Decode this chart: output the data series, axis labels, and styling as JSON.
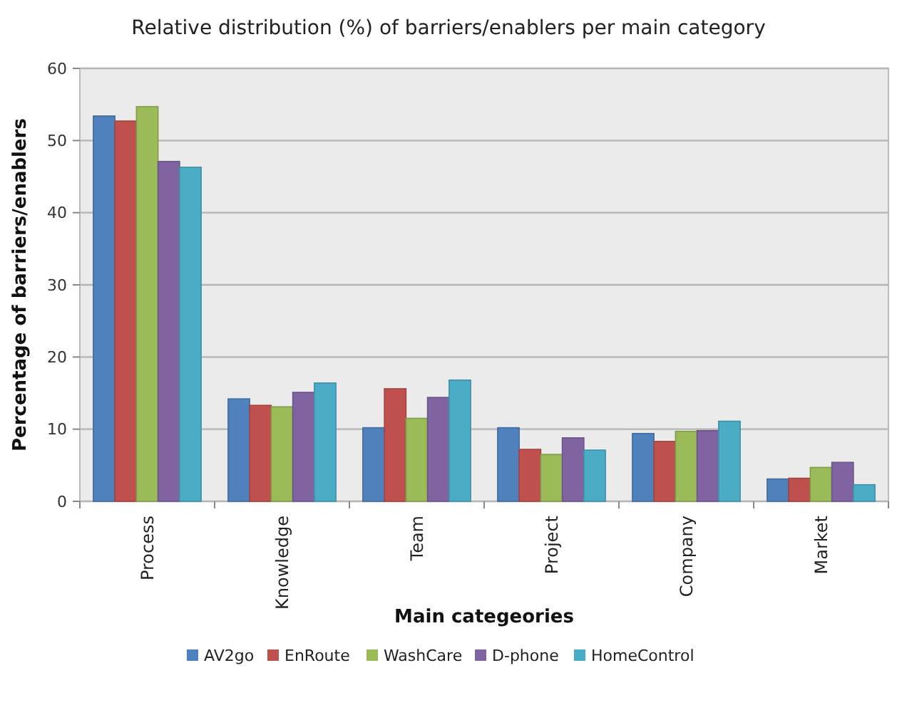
{
  "chart_data": {
    "type": "bar",
    "title": "Relative distribution (%) of barriers/enablers per main category",
    "xlabel": "Main categeories",
    "ylabel": "Percentage of barriers/enablers",
    "categories": [
      "Process",
      "Knowledge",
      "Team",
      "Project",
      "Company",
      "Market"
    ],
    "series": [
      {
        "name": "AV2go",
        "color": "#4f81bd",
        "values": [
          53.4,
          14.2,
          10.2,
          10.2,
          9.4,
          3.1
        ]
      },
      {
        "name": "EnRoute",
        "color": "#c0504d",
        "values": [
          52.7,
          13.3,
          15.6,
          7.2,
          8.3,
          3.2
        ]
      },
      {
        "name": "WashCare",
        "color": "#9bbb59",
        "values": [
          54.7,
          13.1,
          11.5,
          6.5,
          9.7,
          4.7
        ]
      },
      {
        "name": "D-phone",
        "color": "#8064a2",
        "values": [
          47.1,
          15.1,
          14.4,
          8.8,
          9.8,
          5.4
        ]
      },
      {
        "name": "HomeControl",
        "color": "#4bacc6",
        "values": [
          46.3,
          16.4,
          16.8,
          7.1,
          11.1,
          2.3
        ]
      }
    ],
    "ylim": [
      0,
      60
    ],
    "yticks": [
      0,
      10,
      20,
      30,
      40,
      50,
      60
    ],
    "grid": "y",
    "legend": "bottom"
  }
}
